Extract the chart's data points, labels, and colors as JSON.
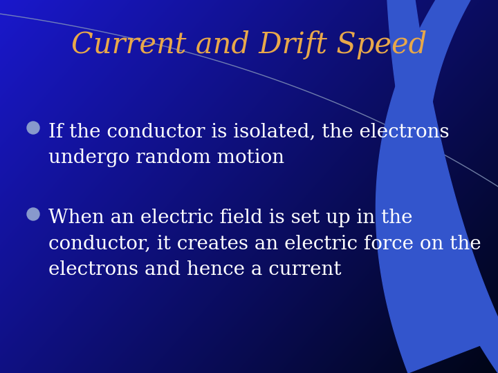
{
  "title": "Current and Drift Speed",
  "title_color": "#E8A84A",
  "title_fontsize": 30,
  "background_color_left": "#1A18CC",
  "background_color_right": "#000820",
  "bullet_color": "#8899CC",
  "text_color": "#FFFFFF",
  "bullet_points": [
    "If the conductor is isolated, the electrons\nundergo random motion",
    "When an electric field is set up in the\nconductor, it creates an electric force on the\nelectrons and hence a current"
  ],
  "bullet_fontsize": 20,
  "figsize": [
    7.2,
    5.4
  ],
  "dpi": 100,
  "thin_arc_color": "#7799CC",
  "swoosh_color": "#3355CC",
  "dark_bg_color": "#000515"
}
